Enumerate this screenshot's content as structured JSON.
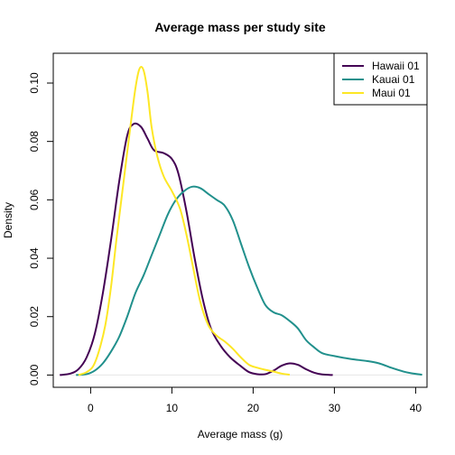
{
  "chart_data": {
    "type": "line",
    "title": "Average mass per study site",
    "xlabel": "Average mass (g)",
    "ylabel": "Density",
    "xlim": [
      -4.6,
      41.4
    ],
    "ylim": [
      -0.0042,
      0.1102
    ],
    "x_ticks": [
      0,
      10,
      20,
      30,
      40
    ],
    "y_ticks": [
      0.0,
      0.02,
      0.04,
      0.06,
      0.08,
      0.1
    ],
    "x_tick_labels": [
      "0",
      "10",
      "20",
      "30",
      "40"
    ],
    "y_tick_labels": [
      "0.00",
      "0.02",
      "0.04",
      "0.06",
      "0.08",
      "0.10"
    ],
    "grid": false,
    "legend_position": "top-right",
    "series": [
      {
        "name": "Hawaii 01",
        "color": "#440154",
        "points": [
          [
            -3.8,
            0.0
          ],
          [
            -2.5,
            0.0005
          ],
          [
            -1.5,
            0.002
          ],
          [
            -0.5,
            0.006
          ],
          [
            0.5,
            0.014
          ],
          [
            1.5,
            0.028
          ],
          [
            2.5,
            0.046
          ],
          [
            3.5,
            0.066
          ],
          [
            4.5,
            0.082
          ],
          [
            5.3,
            0.086
          ],
          [
            6.2,
            0.085
          ],
          [
            7.0,
            0.081
          ],
          [
            7.8,
            0.077
          ],
          [
            9.0,
            0.076
          ],
          [
            10.0,
            0.074
          ],
          [
            10.8,
            0.069
          ],
          [
            11.8,
            0.056
          ],
          [
            12.8,
            0.04
          ],
          [
            13.8,
            0.026
          ],
          [
            14.8,
            0.016
          ],
          [
            16.0,
            0.01
          ],
          [
            17.2,
            0.006
          ],
          [
            18.5,
            0.003
          ],
          [
            19.5,
            0.001
          ],
          [
            20.5,
            0.0003
          ],
          [
            21.5,
            0.0003
          ],
          [
            22.5,
            0.0015
          ],
          [
            23.5,
            0.0032
          ],
          [
            24.5,
            0.004
          ],
          [
            25.5,
            0.0035
          ],
          [
            26.5,
            0.002
          ],
          [
            27.5,
            0.0008
          ],
          [
            28.5,
            0.0002
          ],
          [
            29.8,
            0.0
          ]
        ]
      },
      {
        "name": "Kauai 01",
        "color": "#21908C",
        "points": [
          [
            -1.8,
            0.0
          ],
          [
            -0.5,
            0.0003
          ],
          [
            0.5,
            0.0015
          ],
          [
            1.5,
            0.004
          ],
          [
            2.5,
            0.008
          ],
          [
            3.5,
            0.013
          ],
          [
            4.5,
            0.02
          ],
          [
            5.5,
            0.028
          ],
          [
            6.5,
            0.034
          ],
          [
            7.5,
            0.041
          ],
          [
            8.5,
            0.048
          ],
          [
            9.5,
            0.055
          ],
          [
            10.5,
            0.06
          ],
          [
            11.5,
            0.063
          ],
          [
            12.5,
            0.0645
          ],
          [
            13.5,
            0.064
          ],
          [
            14.5,
            0.062
          ],
          [
            15.5,
            0.06
          ],
          [
            16.5,
            0.058
          ],
          [
            17.5,
            0.053
          ],
          [
            18.5,
            0.045
          ],
          [
            19.5,
            0.037
          ],
          [
            20.5,
            0.03
          ],
          [
            21.5,
            0.024
          ],
          [
            22.5,
            0.0215
          ],
          [
            23.5,
            0.0205
          ],
          [
            24.5,
            0.0185
          ],
          [
            25.5,
            0.016
          ],
          [
            26.5,
            0.012
          ],
          [
            27.5,
            0.0095
          ],
          [
            28.5,
            0.0075
          ],
          [
            30.0,
            0.0065
          ],
          [
            32.0,
            0.0055
          ],
          [
            34.0,
            0.0048
          ],
          [
            35.5,
            0.004
          ],
          [
            37.0,
            0.0025
          ],
          [
            38.5,
            0.0012
          ],
          [
            39.5,
            0.0006
          ],
          [
            40.8,
            0.0001
          ]
        ]
      },
      {
        "name": "Maui 01",
        "color": "#FDE725",
        "points": [
          [
            -1.5,
            0.0
          ],
          [
            -0.5,
            0.001
          ],
          [
            0.3,
            0.003
          ],
          [
            1.0,
            0.008
          ],
          [
            1.8,
            0.017
          ],
          [
            2.5,
            0.03
          ],
          [
            3.2,
            0.047
          ],
          [
            4.0,
            0.065
          ],
          [
            4.8,
            0.083
          ],
          [
            5.5,
            0.098
          ],
          [
            6.0,
            0.1048
          ],
          [
            6.5,
            0.1045
          ],
          [
            7.0,
            0.097
          ],
          [
            7.5,
            0.085
          ],
          [
            8.2,
            0.075
          ],
          [
            9.0,
            0.068
          ],
          [
            10.0,
            0.063
          ],
          [
            11.0,
            0.057
          ],
          [
            11.8,
            0.048
          ],
          [
            12.6,
            0.037
          ],
          [
            13.5,
            0.025
          ],
          [
            14.5,
            0.017
          ],
          [
            15.5,
            0.0135
          ],
          [
            16.5,
            0.0115
          ],
          [
            17.5,
            0.009
          ],
          [
            18.5,
            0.006
          ],
          [
            19.5,
            0.0035
          ],
          [
            20.5,
            0.0025
          ],
          [
            21.5,
            0.0018
          ],
          [
            22.5,
            0.0012
          ],
          [
            23.5,
            0.0005
          ],
          [
            24.5,
            0.0001
          ]
        ]
      }
    ]
  }
}
